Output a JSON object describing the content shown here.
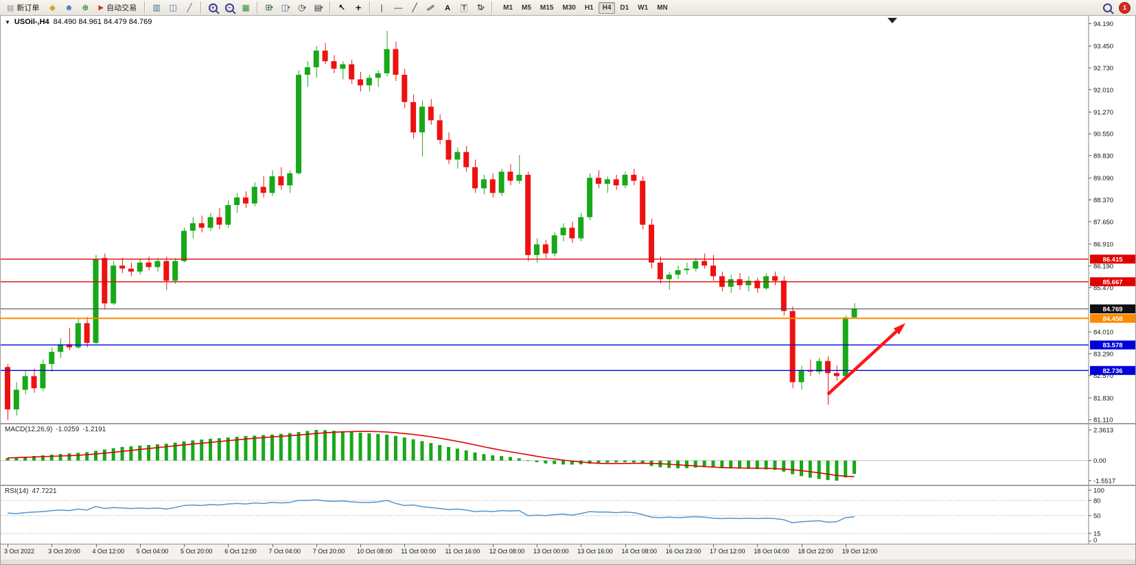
{
  "toolbar": {
    "new_order_label": "新订单",
    "autotrading_label": "自动交易",
    "timeframes": [
      "M1",
      "M5",
      "M15",
      "M30",
      "H1",
      "H4",
      "D1",
      "W1",
      "MN"
    ],
    "active_timeframe": "H4",
    "notification_count": "1",
    "icons": [
      "new-order-icon",
      "coins-icon",
      "community-icon",
      "globe-icon",
      "autotrading-play-icon",
      "bar-chart-icon",
      "candlestick-chart-icon",
      "line-chart-icon",
      "zoom-in-icon",
      "zoom-out-icon",
      "grid-icon",
      "new-chart-icon",
      "chart-profiles-icon",
      "clock-icon",
      "templates-icon",
      "cursor-icon",
      "crosshair-icon",
      "vertical-line-icon",
      "horizontal-line-icon",
      "trendline-icon",
      "channel-icon",
      "text-icon",
      "text-label-icon",
      "arrow-objects-icon",
      "search-icon"
    ]
  },
  "chart": {
    "title_symbol": "USOil-,H4",
    "title_ohlc": "84.490 84.961 84.479 84.769",
    "y_labels": [
      "94.190",
      "93.450",
      "92.730",
      "92.010",
      "91.270",
      "90.550",
      "89.830",
      "89.090",
      "88.370",
      "87.650",
      "86.910",
      "86.190",
      "85.470",
      "84.010",
      "83.290",
      "82.570",
      "81.830",
      "81.110"
    ],
    "hlines": [
      {
        "price": 86.415,
        "label": "86.415",
        "color": "#e00000",
        "width": 1.4
      },
      {
        "price": 85.667,
        "label": "85.667",
        "color": "#e00000",
        "width": 1.4
      },
      {
        "price": 84.458,
        "label": "84.458",
        "color": "#ff8a00",
        "width": 2
      },
      {
        "price": 83.578,
        "label": "83.578",
        "color": "#0000dd",
        "width": 1.4
      },
      {
        "price": 82.736,
        "label": "82.736",
        "color": "#0000dd",
        "width": 1.4
      },
      {
        "price": 84.769,
        "label": "84.769",
        "color": "#444444",
        "badge": "#111111",
        "width": 1
      }
    ],
    "arrow": {
      "from": {
        "bar": 93,
        "price": 81.95
      },
      "to": {
        "bar": 101.8,
        "price": 84.3
      },
      "color": "#ff1414"
    }
  },
  "chart_data": {
    "type": "candlestick",
    "symbol": "USOil-",
    "timeframe": "H4",
    "y_range": [
      81.0,
      94.45
    ],
    "x_label_every": 5,
    "x_labels": [
      "3 Oct 2022",
      "3 Oct 20:00",
      "4 Oct 12:00",
      "5 Oct 04:00",
      "5 Oct 20:00",
      "6 Oct 12:00",
      "7 Oct 04:00",
      "7 Oct 20:00",
      "10 Oct 08:00",
      "11 Oct 00:00",
      "11 Oct 16:00",
      "12 Oct 08:00",
      "13 Oct 00:00",
      "13 Oct 16:00",
      "14 Oct 08:00",
      "16 Oct 23:00",
      "17 Oct 12:00",
      "18 Oct 04:00",
      "18 Oct 22:00",
      "19 Oct 12:00"
    ],
    "candles": [
      [
        82.85,
        82.95,
        81.1,
        81.45
      ],
      [
        81.45,
        82.35,
        81.25,
        82.1
      ],
      [
        82.1,
        82.75,
        81.95,
        82.55
      ],
      [
        82.55,
        82.8,
        82.0,
        82.15
      ],
      [
        82.15,
        83.1,
        82.05,
        82.95
      ],
      [
        82.95,
        83.5,
        82.7,
        83.35
      ],
      [
        83.35,
        83.8,
        83.15,
        83.6
      ],
      [
        83.6,
        84.15,
        83.4,
        83.5
      ],
      [
        83.5,
        84.45,
        83.45,
        84.3
      ],
      [
        84.3,
        84.5,
        83.5,
        83.65
      ],
      [
        83.65,
        86.55,
        83.6,
        86.4
      ],
      [
        86.45,
        86.6,
        84.75,
        84.95
      ],
      [
        84.95,
        86.35,
        84.9,
        86.2
      ],
      [
        86.2,
        86.45,
        85.95,
        86.1
      ],
      [
        86.1,
        86.3,
        85.85,
        86.0
      ],
      [
        86.0,
        86.4,
        85.9,
        86.3
      ],
      [
        86.3,
        86.5,
        86.05,
        86.15
      ],
      [
        86.15,
        86.45,
        86.0,
        86.35
      ],
      [
        86.35,
        86.5,
        85.4,
        85.7
      ],
      [
        85.7,
        86.45,
        85.6,
        86.35
      ],
      [
        86.35,
        87.45,
        86.3,
        87.35
      ],
      [
        87.35,
        87.8,
        87.1,
        87.6
      ],
      [
        87.6,
        87.85,
        87.3,
        87.45
      ],
      [
        87.45,
        87.95,
        87.35,
        87.8
      ],
      [
        87.8,
        88.1,
        87.4,
        87.55
      ],
      [
        87.55,
        88.35,
        87.45,
        88.2
      ],
      [
        88.2,
        88.6,
        87.95,
        88.45
      ],
      [
        88.45,
        88.65,
        88.1,
        88.25
      ],
      [
        88.25,
        88.95,
        88.15,
        88.8
      ],
      [
        88.8,
        89.15,
        88.45,
        88.6
      ],
      [
        88.6,
        89.35,
        88.5,
        89.15
      ],
      [
        89.15,
        89.45,
        88.7,
        88.85
      ],
      [
        88.85,
        89.35,
        88.6,
        89.25
      ],
      [
        89.25,
        92.65,
        89.2,
        92.5
      ],
      [
        92.5,
        92.95,
        92.1,
        92.75
      ],
      [
        92.75,
        93.45,
        92.4,
        93.3
      ],
      [
        93.3,
        93.55,
        92.85,
        92.95
      ],
      [
        92.95,
        93.15,
        92.55,
        92.7
      ],
      [
        92.7,
        92.95,
        92.35,
        92.85
      ],
      [
        92.85,
        93.0,
        92.2,
        92.35
      ],
      [
        92.35,
        92.6,
        91.95,
        92.15
      ],
      [
        92.15,
        92.5,
        91.95,
        92.4
      ],
      [
        92.4,
        92.65,
        92.1,
        92.55
      ],
      [
        92.55,
        93.95,
        92.45,
        93.35
      ],
      [
        93.35,
        93.6,
        92.3,
        92.5
      ],
      [
        92.5,
        92.7,
        91.4,
        91.6
      ],
      [
        91.6,
        91.85,
        90.4,
        90.6
      ],
      [
        90.6,
        91.65,
        89.8,
        91.45
      ],
      [
        91.45,
        91.7,
        90.85,
        91.0
      ],
      [
        91.0,
        91.2,
        90.2,
        90.35
      ],
      [
        90.35,
        90.6,
        89.55,
        89.7
      ],
      [
        89.7,
        90.1,
        89.4,
        89.95
      ],
      [
        89.95,
        90.15,
        89.3,
        89.45
      ],
      [
        89.45,
        89.7,
        88.6,
        88.75
      ],
      [
        88.75,
        89.2,
        88.55,
        89.05
      ],
      [
        89.05,
        89.25,
        88.45,
        88.6
      ],
      [
        88.6,
        89.4,
        88.5,
        89.3
      ],
      [
        89.3,
        89.55,
        88.85,
        89.0
      ],
      [
        89.0,
        89.85,
        88.9,
        89.2
      ],
      [
        89.2,
        89.3,
        86.35,
        86.55
      ],
      [
        86.55,
        87.1,
        86.3,
        86.9
      ],
      [
        86.9,
        87.05,
        86.45,
        86.6
      ],
      [
        86.6,
        87.3,
        86.5,
        87.2
      ],
      [
        87.2,
        87.6,
        87.0,
        87.45
      ],
      [
        87.45,
        87.65,
        86.95,
        87.1
      ],
      [
        87.1,
        87.95,
        87.0,
        87.8
      ],
      [
        87.8,
        89.25,
        87.7,
        89.1
      ],
      [
        89.1,
        89.35,
        88.75,
        88.9
      ],
      [
        88.9,
        89.15,
        88.6,
        89.05
      ],
      [
        89.05,
        89.2,
        88.7,
        88.85
      ],
      [
        88.85,
        89.3,
        88.75,
        89.2
      ],
      [
        89.2,
        89.4,
        88.85,
        89.0
      ],
      [
        89.0,
        89.15,
        87.4,
        87.55
      ],
      [
        87.55,
        87.75,
        86.1,
        86.3
      ],
      [
        86.3,
        86.5,
        85.6,
        85.75
      ],
      [
        85.75,
        86.0,
        85.4,
        85.9
      ],
      [
        85.9,
        86.2,
        85.75,
        86.05
      ],
      [
        86.05,
        86.3,
        85.9,
        86.1
      ],
      [
        86.1,
        86.45,
        86.0,
        86.35
      ],
      [
        86.35,
        86.6,
        86.1,
        86.2
      ],
      [
        86.2,
        86.55,
        85.7,
        85.85
      ],
      [
        85.85,
        86.0,
        85.35,
        85.5
      ],
      [
        85.5,
        85.9,
        85.3,
        85.75
      ],
      [
        85.75,
        85.95,
        85.4,
        85.55
      ],
      [
        85.55,
        85.85,
        85.35,
        85.7
      ],
      [
        85.7,
        85.8,
        85.3,
        85.45
      ],
      [
        85.45,
        85.95,
        85.4,
        85.85
      ],
      [
        85.85,
        86.0,
        85.55,
        85.7
      ],
      [
        85.7,
        85.85,
        84.55,
        84.7
      ],
      [
        84.7,
        84.85,
        82.15,
        82.35
      ],
      [
        82.35,
        82.9,
        82.1,
        82.75
      ],
      [
        82.75,
        83.1,
        82.55,
        82.7
      ],
      [
        82.7,
        83.15,
        82.6,
        83.05
      ],
      [
        83.05,
        83.2,
        81.6,
        82.65
      ],
      [
        82.65,
        82.9,
        82.4,
        82.55
      ],
      [
        82.55,
        84.55,
        82.45,
        84.49
      ],
      [
        84.49,
        84.961,
        84.479,
        84.769
      ]
    ]
  },
  "macd": {
    "name": "MACD(12,26,9)",
    "value1": "-1.0259",
    "value2": "-1.2191",
    "max": 2.3613,
    "min": -1.5517,
    "max_label": "2.3613",
    "zero_label": "0.00",
    "min_label": "-1.5517",
    "hist": [
      0.2,
      0.25,
      0.3,
      0.35,
      0.4,
      0.45,
      0.5,
      0.55,
      0.6,
      0.65,
      0.75,
      0.85,
      0.95,
      1.05,
      1.1,
      1.15,
      1.2,
      1.25,
      1.3,
      1.38,
      1.48,
      1.55,
      1.62,
      1.68,
      1.72,
      1.78,
      1.83,
      1.88,
      1.92,
      1.96,
      2.0,
      2.06,
      2.12,
      2.2,
      2.28,
      2.36,
      2.34,
      2.3,
      2.26,
      2.21,
      2.15,
      2.1,
      2.05,
      2.0,
      1.9,
      1.78,
      1.64,
      1.5,
      1.35,
      1.2,
      1.05,
      0.92,
      0.78,
      0.62,
      0.5,
      0.4,
      0.34,
      0.28,
      0.18,
      0.02,
      -0.12,
      -0.22,
      -0.27,
      -0.3,
      -0.31,
      -0.29,
      -0.24,
      -0.2,
      -0.16,
      -0.14,
      -0.13,
      -0.15,
      -0.26,
      -0.42,
      -0.52,
      -0.57,
      -0.6,
      -0.58,
      -0.54,
      -0.52,
      -0.54,
      -0.58,
      -0.61,
      -0.63,
      -0.64,
      -0.66,
      -0.68,
      -0.72,
      -0.85,
      -1.05,
      -1.2,
      -1.32,
      -1.42,
      -1.5,
      -1.55,
      -1.3,
      -1.0259
    ]
  },
  "rsi": {
    "name": "RSI(14)",
    "value": "47.7221",
    "levels": [
      80,
      50,
      15
    ],
    "axis_labels": [
      "100",
      "80",
      "50",
      "15",
      "0"
    ],
    "values": [
      55,
      54,
      56,
      57,
      58,
      60,
      61,
      60,
      63,
      61,
      68,
      64,
      66,
      65,
      64,
      65,
      64,
      65,
      63,
      66,
      70,
      71,
      70,
      72,
      71,
      73,
      74,
      73,
      75,
      74,
      76,
      75,
      76,
      80,
      80,
      81,
      79,
      78,
      79,
      77,
      76,
      76,
      77,
      80,
      74,
      70,
      71,
      68,
      66,
      64,
      62,
      63,
      61,
      58,
      59,
      58,
      60,
      59,
      60,
      50,
      51,
      50,
      52,
      53,
      51,
      54,
      58,
      57,
      57,
      56,
      57,
      56,
      52,
      47,
      46,
      47,
      46,
      47,
      48,
      47,
      45,
      44,
      45,
      44,
      45,
      44,
      45,
      44,
      42,
      36,
      38,
      39,
      40,
      37,
      38,
      46,
      47.7221
    ]
  },
  "colors": {
    "candle_up": "#18a818",
    "candle_down": "#ee1111",
    "macd_hist": "#18a818",
    "macd_signal": "#e00000",
    "rsi_line": "#4f95d0",
    "arrow": "#ff1414"
  }
}
